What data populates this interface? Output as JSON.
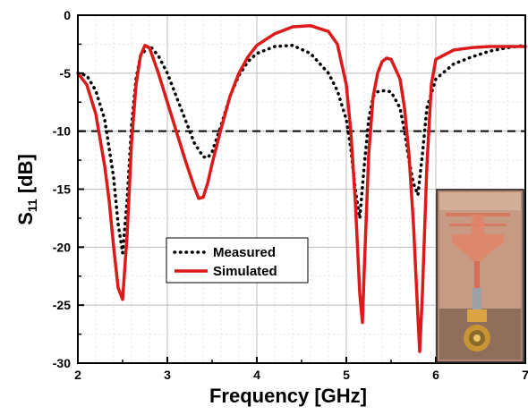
{
  "chart_data": {
    "type": "line",
    "xlabel": "Frequency [GHz]",
    "ylabel_main": "S",
    "ylabel_sub": "11",
    "ylabel_unit": " [dB]",
    "xlim": [
      2,
      7
    ],
    "ylim": [
      -30,
      0
    ],
    "xticks": [
      2,
      3,
      4,
      5,
      6,
      7
    ],
    "yticks": [
      0,
      -5,
      -10,
      -15,
      -20,
      -25,
      -30
    ],
    "grid": true,
    "threshold_db": -10,
    "legend_position": "bottom-center",
    "series": [
      {
        "name": "Measured",
        "color": "#000000",
        "style": "dotted",
        "x": [
          2.0,
          2.1,
          2.2,
          2.3,
          2.4,
          2.45,
          2.5,
          2.55,
          2.6,
          2.65,
          2.7,
          2.8,
          2.9,
          3.0,
          3.1,
          3.2,
          3.3,
          3.4,
          3.45,
          3.5,
          3.6,
          3.7,
          3.8,
          3.9,
          4.0,
          4.2,
          4.4,
          4.6,
          4.8,
          4.9,
          5.0,
          5.05,
          5.1,
          5.15,
          5.2,
          5.25,
          5.3,
          5.35,
          5.4,
          5.5,
          5.6,
          5.65,
          5.7,
          5.75,
          5.8,
          5.85,
          5.9,
          6.0,
          6.2,
          6.4,
          6.6,
          6.8,
          7.0
        ],
        "y": [
          -5.0,
          -5.2,
          -6.5,
          -9.0,
          -14.0,
          -18.0,
          -20.5,
          -16.0,
          -9.5,
          -5.5,
          -3.5,
          -2.6,
          -3.5,
          -5.0,
          -7.0,
          -9.0,
          -11.0,
          -12.2,
          -12.3,
          -11.8,
          -9.5,
          -7.0,
          -5.2,
          -4.0,
          -3.3,
          -2.7,
          -2.6,
          -3.3,
          -5.0,
          -6.5,
          -9.0,
          -11.5,
          -15.0,
          -17.5,
          -13.0,
          -9.0,
          -7.0,
          -6.6,
          -6.5,
          -6.6,
          -8.0,
          -10.0,
          -12.5,
          -14.5,
          -15.5,
          -12.0,
          -8.0,
          -5.5,
          -4.2,
          -3.6,
          -3.1,
          -2.8,
          -2.6
        ]
      },
      {
        "name": "Simulated",
        "color": "#dd1a1a",
        "style": "solid",
        "x": [
          2.0,
          2.1,
          2.2,
          2.3,
          2.35,
          2.4,
          2.45,
          2.5,
          2.55,
          2.6,
          2.65,
          2.7,
          2.75,
          2.8,
          2.9,
          3.0,
          3.1,
          3.2,
          3.3,
          3.35,
          3.4,
          3.45,
          3.5,
          3.6,
          3.7,
          3.8,
          3.9,
          4.0,
          4.2,
          4.4,
          4.6,
          4.8,
          4.9,
          5.0,
          5.05,
          5.1,
          5.15,
          5.18,
          5.2,
          5.25,
          5.3,
          5.35,
          5.4,
          5.45,
          5.5,
          5.6,
          5.65,
          5.7,
          5.75,
          5.8,
          5.82,
          5.85,
          5.9,
          5.95,
          6.0,
          6.2,
          6.4,
          6.6,
          6.8,
          7.0
        ],
        "y": [
          -5.0,
          -6.0,
          -8.5,
          -13.0,
          -16.0,
          -20.0,
          -23.5,
          -24.5,
          -19.0,
          -11.0,
          -6.0,
          -3.5,
          -2.6,
          -2.8,
          -5.0,
          -7.5,
          -10.0,
          -12.5,
          -14.8,
          -15.8,
          -15.7,
          -14.5,
          -12.8,
          -9.8,
          -7.0,
          -5.0,
          -3.6,
          -2.6,
          -1.6,
          -1.0,
          -0.9,
          -1.4,
          -2.5,
          -6.0,
          -10.0,
          -16.0,
          -24.0,
          -26.5,
          -22.0,
          -12.0,
          -7.0,
          -5.0,
          -4.0,
          -3.7,
          -3.8,
          -5.5,
          -8.0,
          -12.0,
          -18.0,
          -26.0,
          -29.0,
          -24.0,
          -13.0,
          -6.0,
          -3.8,
          -3.0,
          -2.8,
          -2.7,
          -2.7,
          -2.7
        ]
      }
    ]
  },
  "inset": {
    "photo_caption": ""
  }
}
